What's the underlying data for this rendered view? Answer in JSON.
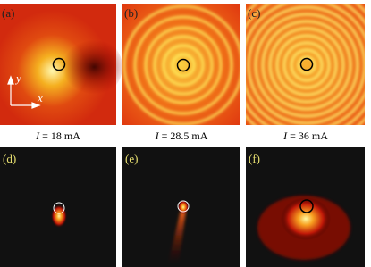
{
  "panels": [
    {
      "label": "(a)"
    },
    {
      "label": "(b)"
    },
    {
      "label": "(c)"
    },
    {
      "label": "(d)"
    },
    {
      "label": "(e)"
    },
    {
      "label": "(f)"
    }
  ],
  "axes": {
    "x": "x",
    "y": "y"
  },
  "captions": [
    {
      "symbol": "I",
      "rest": "= 18 mA"
    },
    {
      "symbol": "I",
      "rest": "= 28.5 mA"
    },
    {
      "symbol": "I",
      "rest": "= 36 mA"
    }
  ]
}
